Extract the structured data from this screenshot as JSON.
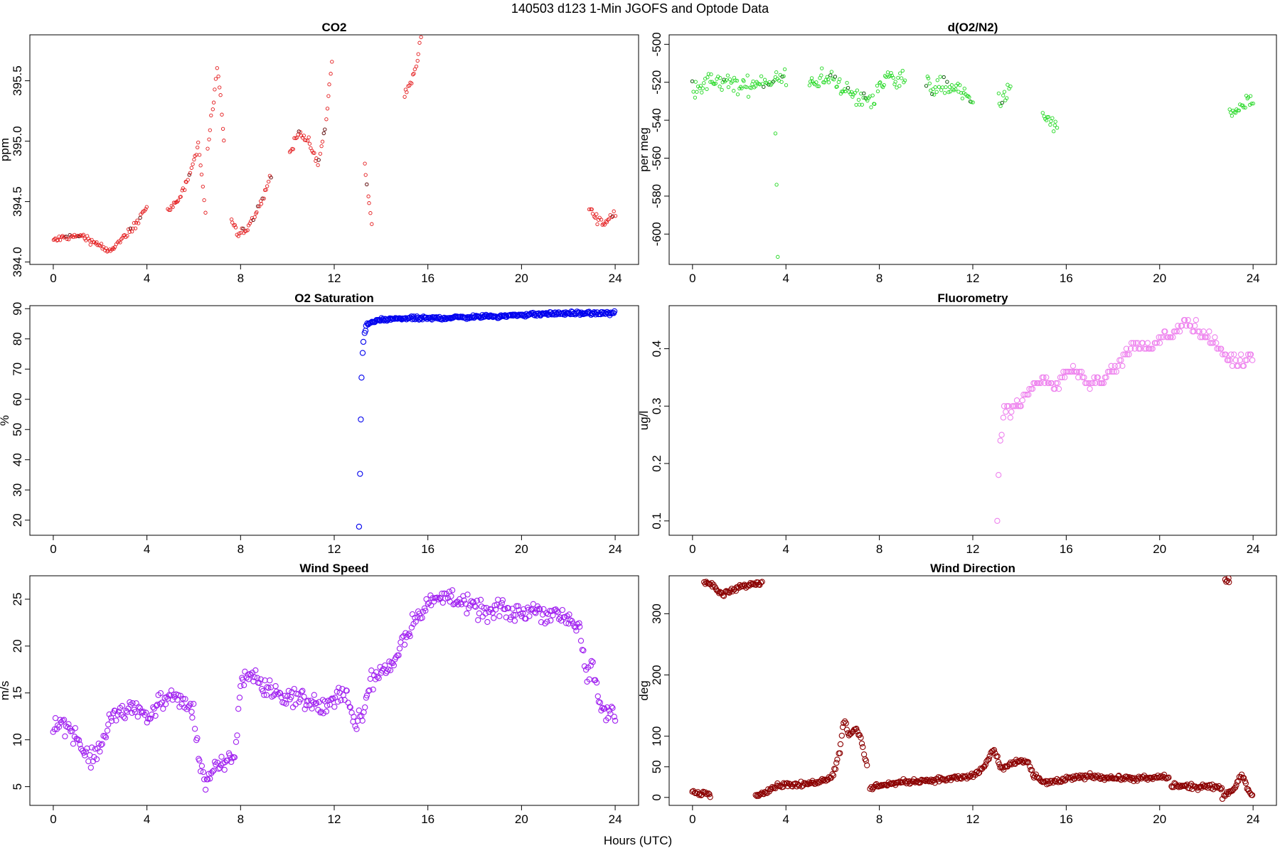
{
  "figure": {
    "title": "140503   d123   1-Min  JGOFS and Optode Data",
    "xlabel": "Hours (UTC)"
  },
  "chart_data": [
    {
      "type": "scatter",
      "title": "CO2",
      "ylabel": "ppm",
      "xlim": [
        -1,
        25
      ],
      "ylim": [
        393.98,
        395.88
      ],
      "xticks": [
        0,
        4,
        8,
        12,
        16,
        20,
        24
      ],
      "yticks": [
        "394.0",
        "394.5",
        "395.0",
        "395.5"
      ],
      "color": "#e41a1c",
      "marker_size": 2.2,
      "segments": [
        {
          "x": [
            0.0,
            0.5,
            1.0,
            1.5,
            2.0,
            2.3,
            2.6,
            3.0,
            3.5,
            4.0
          ],
          "y": [
            394.18,
            394.2,
            394.22,
            394.19,
            394.14,
            394.08,
            394.12,
            394.2,
            394.3,
            394.47
          ]
        },
        {
          "x": [
            4.9,
            5.3,
            5.6,
            5.9,
            6.2,
            6.5
          ],
          "y": [
            394.42,
            394.5,
            394.62,
            394.78,
            394.98,
            394.42
          ]
        },
        {
          "x": [
            6.6,
            6.8,
            7.0,
            7.15,
            7.3
          ],
          "y": [
            394.95,
            395.25,
            395.58,
            395.35,
            395.0
          ]
        },
        {
          "x": [
            7.6,
            7.9,
            8.3,
            8.6,
            9.0,
            9.3
          ],
          "y": [
            394.35,
            394.22,
            394.28,
            394.38,
            394.55,
            394.72
          ]
        },
        {
          "x": [
            10.1,
            10.5,
            10.9,
            11.3,
            11.6,
            11.9
          ],
          "y": [
            394.9,
            395.08,
            395.0,
            394.8,
            395.1,
            395.65
          ]
        },
        {
          "x": [
            13.3,
            13.45,
            13.6
          ],
          "y": [
            394.8,
            394.55,
            394.3
          ]
        },
        {
          "x": [
            15.0,
            15.3,
            15.5,
            15.7
          ],
          "y": [
            395.4,
            395.5,
            395.62,
            395.85
          ]
        },
        {
          "x": [
            22.9,
            23.2,
            23.5,
            23.8,
            24.0
          ],
          "y": [
            394.45,
            394.36,
            394.32,
            394.36,
            394.4
          ]
        }
      ]
    },
    {
      "type": "scatter",
      "title": "d(O2/N2)",
      "ylabel": "per meg",
      "xlim": [
        -1,
        25
      ],
      "ylim": [
        -616,
        -495
      ],
      "xticks": [
        0,
        4,
        8,
        12,
        16,
        20,
        24
      ],
      "yticks": [
        -600,
        -580,
        -560,
        -540,
        -520,
        -500
      ],
      "ytick_rotate": true,
      "color": "#21d821",
      "marker_size": 2.2,
      "segments": [
        {
          "x": [
            0.0,
            1.0,
            2.0,
            3.0,
            4.0
          ],
          "y": [
            -522,
            -520,
            -522,
            -520,
            -518
          ]
        },
        {
          "x": [
            5.0,
            6.0,
            7.0,
            7.8
          ],
          "y": [
            -520,
            -518,
            -528,
            -530
          ]
        },
        {
          "x": [
            7.9,
            8.5,
            9.1
          ],
          "y": [
            -522,
            -517,
            -518
          ]
        },
        {
          "x": [
            10.0,
            11.0,
            12.0
          ],
          "y": [
            -522,
            -522,
            -530
          ]
        },
        {
          "x": [
            13.1,
            13.6
          ],
          "y": [
            -530,
            -525
          ]
        },
        {
          "x": [
            15.0,
            15.6
          ],
          "y": [
            -538,
            -543
          ]
        },
        {
          "x": [
            23.0,
            24.0
          ],
          "y": [
            -538,
            -530
          ]
        }
      ],
      "outliers": {
        "x": [
          3.55,
          3.6,
          3.65
        ],
        "y": [
          -547,
          -574,
          -612
        ]
      }
    },
    {
      "type": "scatter",
      "title": "O2 Saturation",
      "ylabel": "%",
      "xlim": [
        -1,
        25
      ],
      "ylim": [
        15,
        91
      ],
      "xticks": [
        0,
        4,
        8,
        12,
        16,
        20,
        24
      ],
      "yticks": [
        20,
        30,
        40,
        50,
        60,
        70,
        80,
        90
      ],
      "color": "#0000ee",
      "marker_size": 3.6,
      "segments": [
        {
          "x": [
            13.05,
            13.1,
            13.15,
            13.2,
            13.28,
            13.4,
            13.6,
            14.0,
            15.0,
            16.0,
            17.0,
            18.0,
            19.0,
            20.0,
            21.0,
            22.0,
            23.0,
            24.0
          ],
          "y": [
            18,
            40,
            62,
            75,
            82,
            84.5,
            85.5,
            86.3,
            86.8,
            86.8,
            87.0,
            87.3,
            87.5,
            87.9,
            88.3,
            88.5,
            88.4,
            88.6
          ]
        }
      ]
    },
    {
      "type": "scatter",
      "title": "Fluorometry",
      "ylabel": "ug/l",
      "xlim": [
        -1,
        25
      ],
      "ylim": [
        0.075,
        0.475
      ],
      "xticks": [
        0,
        4,
        8,
        12,
        16,
        20,
        24
      ],
      "yticks": [
        "0.1",
        "0.2",
        "0.3",
        "0.4"
      ],
      "ytick_rotate": true,
      "color": "#ee82ee",
      "marker_size": 3.6,
      "segments": [
        {
          "x": [
            13.05,
            13.15,
            13.3,
            14.0,
            14.5,
            15.0,
            15.5,
            16.0,
            16.5,
            17.0,
            17.5,
            18.0,
            18.5,
            19.0,
            19.5,
            20.0,
            20.5,
            21.0,
            21.5,
            22.0,
            22.5,
            23.0,
            23.5,
            24.0
          ],
          "y": [
            0.1,
            0.23,
            0.29,
            0.3,
            0.33,
            0.35,
            0.33,
            0.36,
            0.36,
            0.34,
            0.35,
            0.36,
            0.39,
            0.41,
            0.4,
            0.42,
            0.42,
            0.45,
            0.44,
            0.42,
            0.4,
            0.38,
            0.38,
            0.39
          ]
        }
      ]
    },
    {
      "type": "scatter",
      "title": "Wind Speed",
      "ylabel": "m/s",
      "xlim": [
        -1,
        25
      ],
      "ylim": [
        3,
        27.5
      ],
      "xticks": [
        0,
        4,
        8,
        12,
        16,
        20,
        24
      ],
      "yticks": [
        5,
        10,
        15,
        20,
        25
      ],
      "color": "#a020f0",
      "marker_size": 3.6,
      "segments": [
        {
          "x": [
            0.0,
            0.5,
            1.0,
            1.3,
            1.6,
            2.0,
            2.5,
            3.0,
            3.5,
            4.0,
            4.5,
            5.0,
            5.5,
            6.0,
            6.2,
            6.5,
            7.0,
            7.5,
            7.8,
            8.0,
            8.5,
            9.0,
            9.5,
            10.0,
            10.5,
            11.0,
            11.5,
            12.0,
            12.5,
            12.8,
            13.2,
            13.5,
            14.0,
            14.5,
            15.0,
            15.5,
            16.0,
            16.5,
            17.0,
            17.5,
            18.0,
            18.5,
            19.0,
            19.5,
            20.0,
            20.5,
            21.0,
            21.5,
            22.0,
            22.5,
            22.8,
            23.0,
            23.3,
            23.6,
            24.0
          ],
          "y": [
            11.8,
            11.6,
            10.5,
            8.5,
            8.0,
            9.0,
            12.5,
            13.0,
            13.5,
            12.5,
            14.0,
            14.5,
            14.0,
            13.0,
            8.5,
            5.5,
            7.0,
            7.5,
            9.0,
            16.5,
            17.0,
            15.5,
            15.0,
            14.5,
            14.5,
            14.0,
            13.5,
            14.0,
            15.5,
            12.0,
            12.5,
            16.0,
            17.5,
            18.0,
            21.0,
            23.0,
            24.5,
            25.0,
            25.5,
            24.5,
            24.0,
            23.5,
            24.0,
            23.5,
            23.5,
            24.0,
            23.5,
            23.5,
            23.0,
            22.0,
            16.0,
            18.0,
            14.0,
            13.0,
            12.5
          ]
        }
      ]
    },
    {
      "type": "scatter",
      "title": "Wind Direction",
      "ylabel": "deg",
      "xlim": [
        -1,
        25
      ],
      "ylim": [
        -13,
        362
      ],
      "xticks": [
        0,
        4,
        8,
        12,
        16,
        20,
        24
      ],
      "yticks": [
        0,
        50,
        100,
        200,
        300
      ],
      "ytick_rotate": true,
      "color": "#8b0000",
      "marker_size": 3.6,
      "segments": [
        {
          "x": [
            0.0,
            0.3,
            0.6,
            0.8
          ],
          "y": [
            10,
            5,
            10,
            3
          ]
        },
        {
          "x": [
            0.5,
            0.9,
            1.3,
            1.7,
            2.2,
            2.7,
            3.0
          ],
          "y": [
            352,
            345,
            330,
            338,
            345,
            350,
            352
          ]
        },
        {
          "x": [
            2.7,
            3.2,
            3.7,
            4.2,
            4.7,
            5.2,
            5.7,
            6.0,
            6.3,
            6.5,
            6.7,
            7.0,
            7.2,
            7.4,
            7.5
          ],
          "y": [
            2,
            12,
            20,
            22,
            20,
            25,
            30,
            35,
            75,
            130,
            100,
            115,
            95,
            60,
            50
          ]
        },
        {
          "x": [
            7.6,
            8.0,
            9.0,
            10.0,
            11.0,
            12.0,
            12.5,
            12.9,
            13.1,
            13.3,
            13.6,
            14.0,
            14.4,
            14.6,
            15.0,
            15.5,
            16.0,
            17.0,
            18.0,
            19.0,
            20.0,
            20.4
          ],
          "y": [
            15,
            20,
            25,
            28,
            30,
            35,
            50,
            80,
            55,
            45,
            55,
            60,
            55,
            35,
            25,
            25,
            30,
            35,
            32,
            30,
            33,
            32
          ]
        },
        {
          "x": [
            20.5,
            21.0,
            21.5,
            22.0,
            22.5,
            22.7
          ],
          "y": [
            20,
            18,
            17,
            17,
            16,
            15
          ]
        },
        {
          "x": [
            22.7,
            22.9,
            23.1,
            23.3,
            23.5,
            23.8,
            24.0
          ],
          "y": [
            3,
            8,
            12,
            20,
            38,
            12,
            5
          ]
        },
        {
          "x": [
            22.8,
            23.0
          ],
          "y": [
            355,
            355
          ]
        }
      ]
    }
  ]
}
